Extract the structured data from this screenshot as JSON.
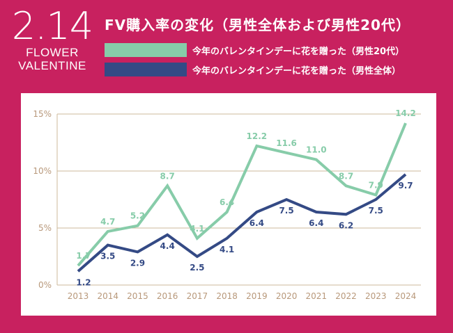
{
  "logo": {
    "date": "2.14",
    "line1": "FLOWER",
    "line2": "VALENTINE"
  },
  "colors": {
    "background": "#c8215f",
    "green": "#87cca9",
    "navy": "#344a85",
    "grid": "#cdb99b",
    "tick": "#b8987a"
  },
  "chart_data": {
    "type": "line",
    "title": "FV購入率の変化（男性全体および男性20代）",
    "x": [
      "2013",
      "2014",
      "2015",
      "2016",
      "2017",
      "2018",
      "2019",
      "2020",
      "2021",
      "2022",
      "2023",
      "2024"
    ],
    "ylim": [
      0,
      15
    ],
    "yticks": [
      0,
      5,
      10,
      15
    ],
    "ytick_labels": [
      "0%",
      "5%",
      "10%",
      "15%"
    ],
    "grid": true,
    "legend_position": "top",
    "series": [
      {
        "name": "今年のバレンタインデーに花を贈った（男性20代）",
        "color": "#87cca9",
        "values": [
          1.7,
          4.7,
          5.2,
          8.7,
          4.1,
          6.4,
          12.2,
          11.6,
          11.0,
          8.7,
          7.9,
          14.2
        ]
      },
      {
        "name": "今年のバレンタインデーに花を贈った（男性全体）",
        "color": "#344a85",
        "values": [
          1.2,
          3.5,
          2.9,
          4.4,
          2.5,
          4.1,
          6.4,
          7.5,
          6.4,
          6.2,
          7.5,
          9.7
        ]
      }
    ]
  }
}
